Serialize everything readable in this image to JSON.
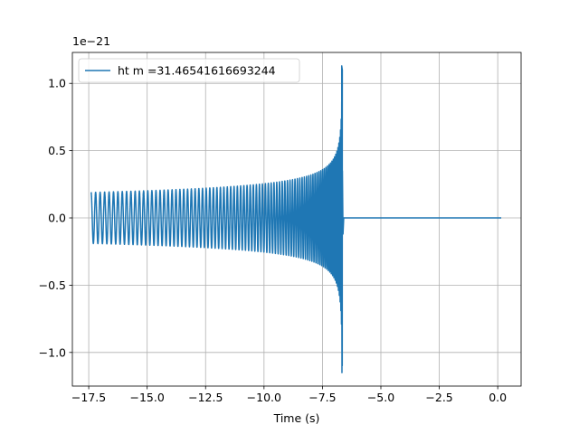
{
  "chart_data": {
    "type": "line",
    "title": "",
    "xlabel": "Time (s)",
    "ylabel": "",
    "y_offset_label": "1e−21",
    "xlim": [
      -18.2,
      1.0
    ],
    "ylim": [
      -1.25,
      1.23
    ],
    "x_ticks": [
      -17.5,
      -15.0,
      -12.5,
      -10.0,
      -7.5,
      -5.0,
      -2.5,
      0.0
    ],
    "x_tick_labels": [
      "−17.5",
      "−15.0",
      "−12.5",
      "−10.0",
      "−7.5",
      "−5.0",
      "−2.5",
      "0.0"
    ],
    "y_ticks": [
      -1.0,
      -0.5,
      0.0,
      0.5,
      1.0
    ],
    "y_tick_labels": [
      "−1.0",
      "−0.5",
      "0.0",
      "0.5",
      "1.0"
    ],
    "grid": true,
    "legend_position": "top-left",
    "series": [
      {
        "name": "ht m =31.46541616693244",
        "color": "#1f77b4",
        "kind": "chirp",
        "x_start": -17.4,
        "x_merger": -6.65,
        "x_end": 0.15,
        "amplitude_start": 0.19,
        "amplitude_peak": 1.13,
        "amplitude_trough": -1.15
      }
    ]
  }
}
